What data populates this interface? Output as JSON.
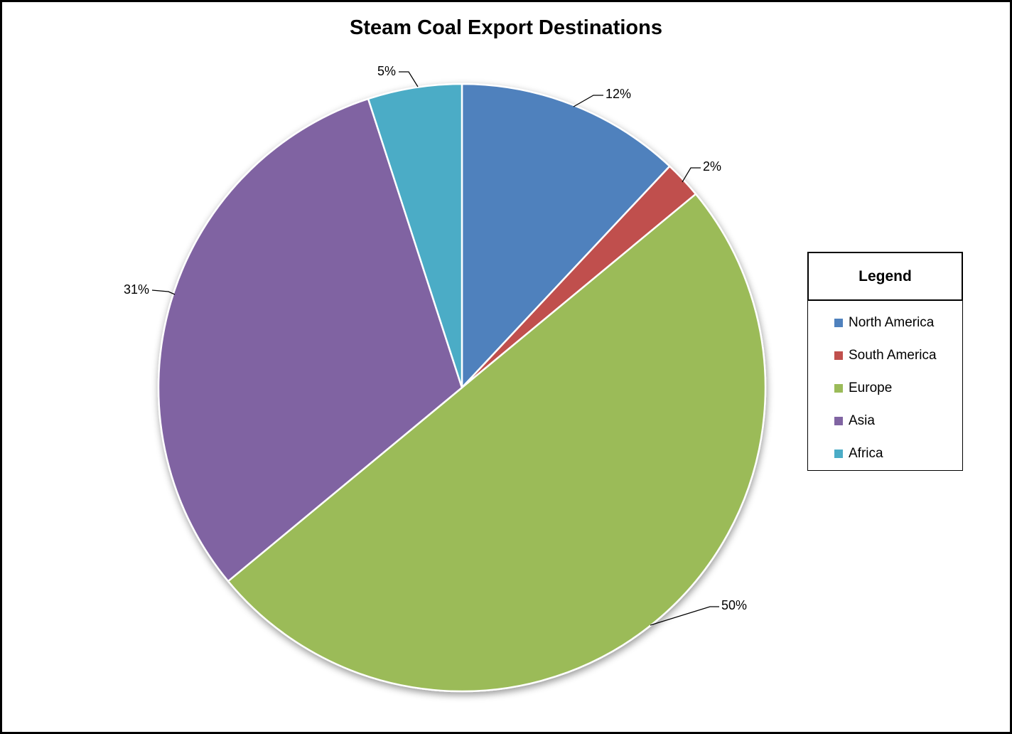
{
  "chart_data": {
    "type": "pie",
    "title": "Steam Coal Export Destinations",
    "categories": [
      "North America",
      "South America",
      "Europe",
      "Asia",
      "Africa"
    ],
    "values": [
      12,
      2,
      50,
      31,
      5
    ],
    "unit": "%",
    "data_labels": [
      "12%",
      "2%",
      "50%",
      "31%",
      "5%"
    ],
    "colors": [
      "#4F81BD",
      "#C0504D",
      "#9BBB59",
      "#8064A2",
      "#4BACC6"
    ],
    "start_angle_deg": 0,
    "direction": "clockwise",
    "legend_position": "right",
    "slice_border_color": "#FFFFFF"
  },
  "legend": {
    "title": "Legend",
    "items": [
      {
        "label": "North America",
        "color": "#4F81BD"
      },
      {
        "label": "South America",
        "color": "#C0504D"
      },
      {
        "label": "Europe",
        "color": "#9BBB59"
      },
      {
        "label": "Asia",
        "color": "#8064A2"
      },
      {
        "label": "Africa",
        "color": "#4BACC6"
      }
    ]
  }
}
